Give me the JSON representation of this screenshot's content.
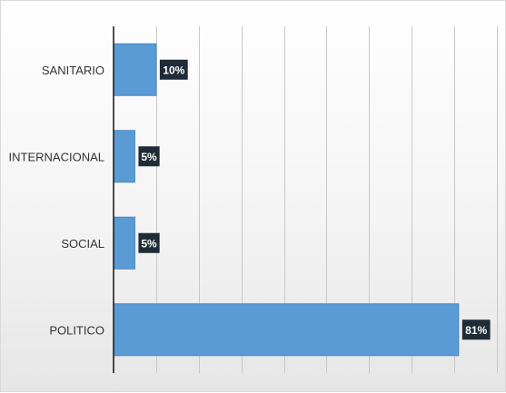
{
  "chart_data": {
    "type": "bar",
    "orientation": "horizontal",
    "categories": [
      "SANITARIO",
      "INTERNACIONAL",
      "SOCIAL",
      "POLITICO"
    ],
    "values": [
      10,
      5,
      5,
      81
    ],
    "data_labels": [
      "10%",
      "5%",
      "5%",
      "81%"
    ],
    "xlim": [
      0,
      90
    ],
    "grid": true,
    "legend": "none",
    "title": "",
    "xlabel": "",
    "ylabel": "",
    "colors": {
      "bar": "#5b9bd5",
      "label_box": "#1f2b36",
      "label_text": "#ffffff"
    }
  }
}
